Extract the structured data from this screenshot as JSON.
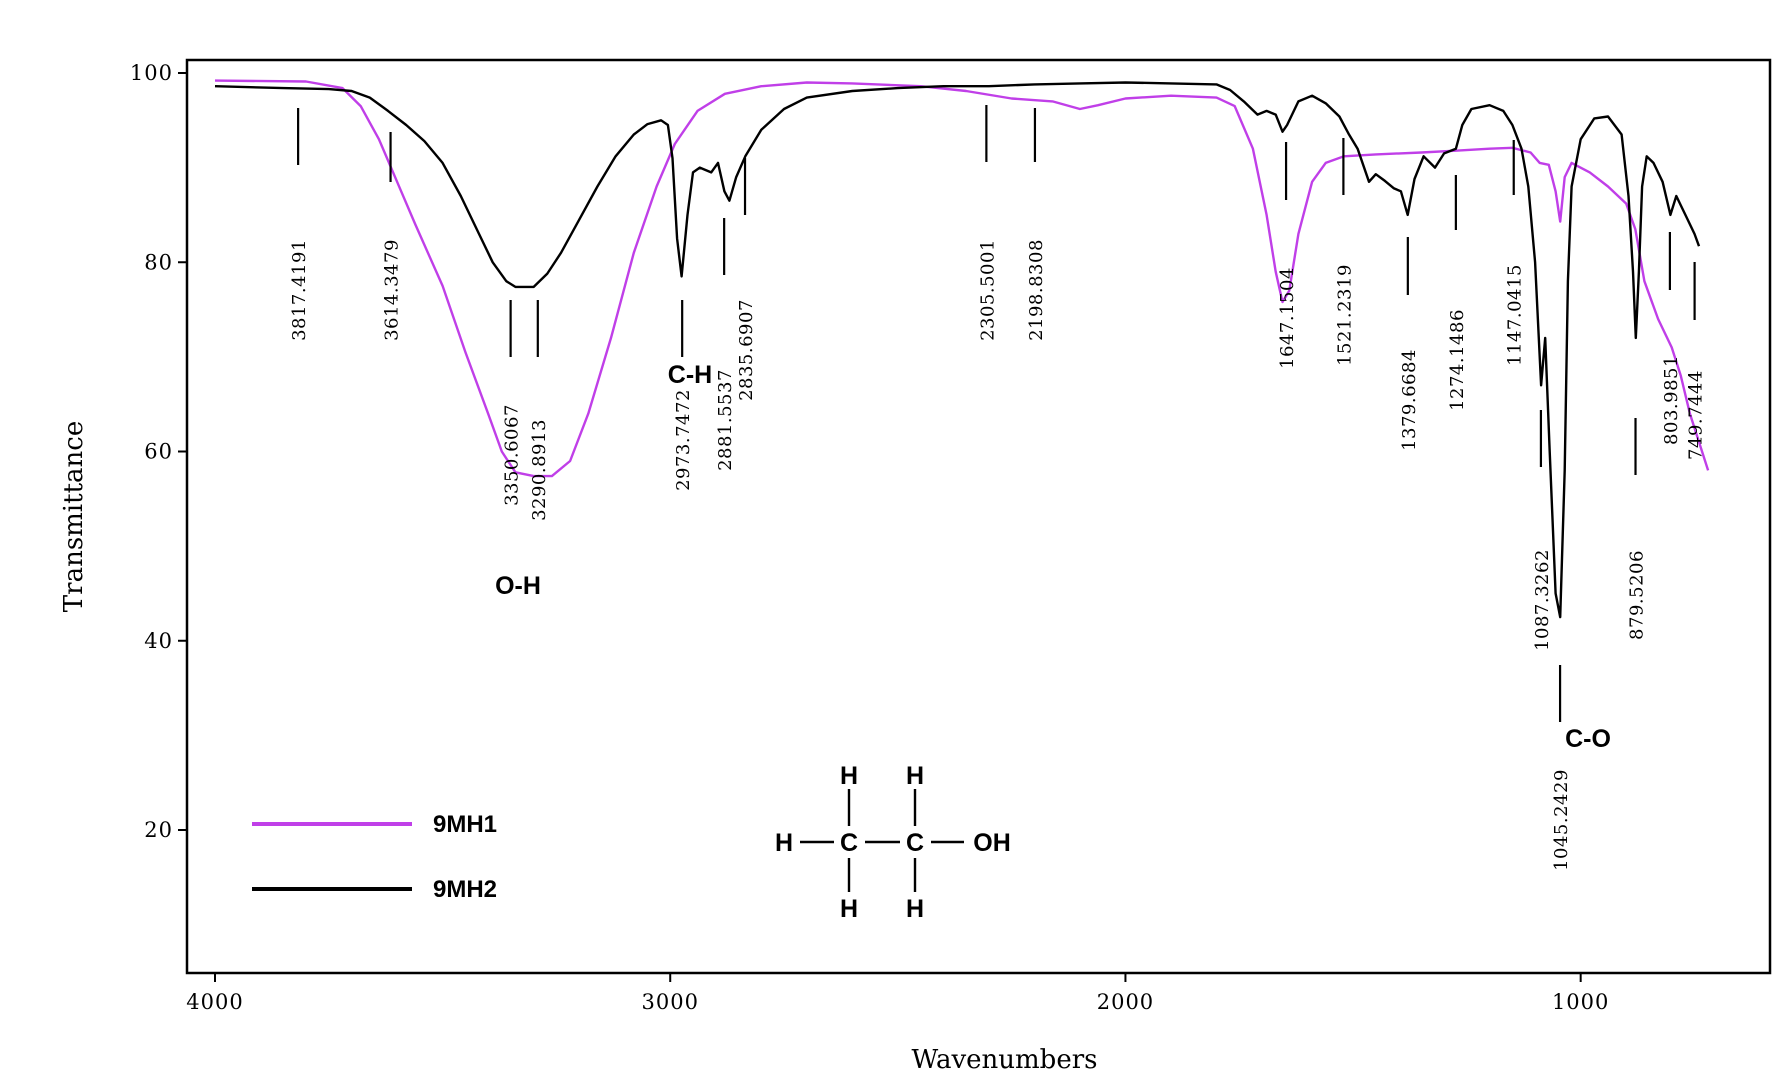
{
  "chart_data": {
    "type": "line",
    "title": "",
    "xlabel": "Wavenumbers",
    "ylabel": "Transmittance",
    "xlim": [
      4000,
      650
    ],
    "ylim": [
      5,
      102
    ],
    "xticks": [
      4000,
      3000,
      2000,
      1000
    ],
    "yticks": [
      20,
      40,
      60,
      80,
      100
    ],
    "x_reversed": true,
    "grid": false,
    "legend_position": "bottom-left",
    "series": [
      {
        "name": "9MH1",
        "color": "#c03fe8",
        "points": [
          [
            4000,
            99.2
          ],
          [
            3800,
            99.1
          ],
          [
            3720,
            98.4
          ],
          [
            3680,
            96.5
          ],
          [
            3640,
            93
          ],
          [
            3600,
            88.5
          ],
          [
            3560,
            84
          ],
          [
            3500,
            77.5
          ],
          [
            3450,
            70.5
          ],
          [
            3400,
            64
          ],
          [
            3370,
            60
          ],
          [
            3340,
            57.8
          ],
          [
            3300,
            57.4
          ],
          [
            3260,
            57.4
          ],
          [
            3220,
            59
          ],
          [
            3180,
            64
          ],
          [
            3130,
            72
          ],
          [
            3080,
            81
          ],
          [
            3030,
            88
          ],
          [
            2990,
            92.5
          ],
          [
            2940,
            96
          ],
          [
            2880,
            97.8
          ],
          [
            2800,
            98.6
          ],
          [
            2700,
            99
          ],
          [
            2600,
            98.9
          ],
          [
            2450,
            98.6
          ],
          [
            2350,
            98.1
          ],
          [
            2250,
            97.3
          ],
          [
            2160,
            97
          ],
          [
            2100,
            96.2
          ],
          [
            2060,
            96.6
          ],
          [
            2000,
            97.3
          ],
          [
            1900,
            97.6
          ],
          [
            1800,
            97.4
          ],
          [
            1760,
            96.5
          ],
          [
            1720,
            92
          ],
          [
            1690,
            85
          ],
          [
            1670,
            79
          ],
          [
            1655,
            75.8
          ],
          [
            1640,
            77
          ],
          [
            1620,
            83
          ],
          [
            1590,
            88.5
          ],
          [
            1560,
            90.5
          ],
          [
            1520,
            91.2
          ],
          [
            1450,
            91.4
          ],
          [
            1350,
            91.6
          ],
          [
            1270,
            91.8
          ],
          [
            1200,
            92
          ],
          [
            1150,
            92.1
          ],
          [
            1110,
            91.6
          ],
          [
            1090,
            90.5
          ],
          [
            1070,
            90.3
          ],
          [
            1055,
            87.5
          ],
          [
            1045,
            84.3
          ],
          [
            1035,
            89
          ],
          [
            1020,
            90.5
          ],
          [
            980,
            89.5
          ],
          [
            940,
            88
          ],
          [
            900,
            86.2
          ],
          [
            880,
            83.5
          ],
          [
            860,
            78
          ],
          [
            830,
            74
          ],
          [
            800,
            71
          ],
          [
            780,
            68
          ],
          [
            760,
            64
          ],
          [
            740,
            61
          ],
          [
            720,
            58
          ]
        ]
      },
      {
        "name": "9MH2",
        "color": "#000000",
        "points": [
          [
            4000,
            98.6
          ],
          [
            3850,
            98.4
          ],
          [
            3750,
            98.3
          ],
          [
            3700,
            98.1
          ],
          [
            3660,
            97.4
          ],
          [
            3620,
            96
          ],
          [
            3580,
            94.5
          ],
          [
            3540,
            92.8
          ],
          [
            3500,
            90.5
          ],
          [
            3460,
            87
          ],
          [
            3420,
            83
          ],
          [
            3390,
            80
          ],
          [
            3360,
            78
          ],
          [
            3340,
            77.4
          ],
          [
            3300,
            77.4
          ],
          [
            3270,
            78.8
          ],
          [
            3240,
            81
          ],
          [
            3200,
            84.5
          ],
          [
            3160,
            88
          ],
          [
            3120,
            91.2
          ],
          [
            3080,
            93.5
          ],
          [
            3050,
            94.6
          ],
          [
            3020,
            95
          ],
          [
            3005,
            94.5
          ],
          [
            2995,
            91
          ],
          [
            2985,
            82.5
          ],
          [
            2975,
            78.5
          ],
          [
            2962,
            85
          ],
          [
            2950,
            89.5
          ],
          [
            2935,
            90
          ],
          [
            2910,
            89.5
          ],
          [
            2895,
            90.5
          ],
          [
            2881,
            87.5
          ],
          [
            2870,
            86.5
          ],
          [
            2855,
            89
          ],
          [
            2835,
            91.2
          ],
          [
            2800,
            94
          ],
          [
            2750,
            96.2
          ],
          [
            2700,
            97.4
          ],
          [
            2600,
            98.1
          ],
          [
            2500,
            98.4
          ],
          [
            2400,
            98.6
          ],
          [
            2300,
            98.6
          ],
          [
            2200,
            98.8
          ],
          [
            2100,
            98.9
          ],
          [
            2000,
            99
          ],
          [
            1900,
            98.9
          ],
          [
            1800,
            98.8
          ],
          [
            1770,
            98.2
          ],
          [
            1740,
            97
          ],
          [
            1710,
            95.6
          ],
          [
            1690,
            96
          ],
          [
            1670,
            95.6
          ],
          [
            1655,
            93.8
          ],
          [
            1645,
            94.5
          ],
          [
            1620,
            97
          ],
          [
            1590,
            97.6
          ],
          [
            1560,
            96.8
          ],
          [
            1530,
            95.4
          ],
          [
            1510,
            93.6
          ],
          [
            1490,
            92
          ],
          [
            1465,
            88.5
          ],
          [
            1450,
            89.3
          ],
          [
            1430,
            88.6
          ],
          [
            1410,
            87.8
          ],
          [
            1395,
            87.5
          ],
          [
            1380,
            85
          ],
          [
            1365,
            88.8
          ],
          [
            1345,
            91.2
          ],
          [
            1320,
            90
          ],
          [
            1300,
            91.5
          ],
          [
            1274,
            92
          ],
          [
            1260,
            94.5
          ],
          [
            1240,
            96.2
          ],
          [
            1200,
            96.6
          ],
          [
            1170,
            96
          ],
          [
            1150,
            94.5
          ],
          [
            1130,
            92
          ],
          [
            1115,
            88
          ],
          [
            1100,
            80
          ],
          [
            1087,
            67
          ],
          [
            1078,
            72
          ],
          [
            1068,
            60
          ],
          [
            1055,
            45
          ],
          [
            1045,
            42.5
          ],
          [
            1035,
            58
          ],
          [
            1028,
            78
          ],
          [
            1020,
            88
          ],
          [
            1000,
            93
          ],
          [
            970,
            95.2
          ],
          [
            940,
            95.4
          ],
          [
            910,
            93.5
          ],
          [
            895,
            87
          ],
          [
            885,
            79
          ],
          [
            879,
            72
          ],
          [
            872,
            79
          ],
          [
            865,
            88
          ],
          [
            855,
            91.2
          ],
          [
            840,
            90.5
          ],
          [
            820,
            88.5
          ],
          [
            803,
            85
          ],
          [
            790,
            87
          ],
          [
            770,
            85
          ],
          [
            750,
            83
          ],
          [
            740,
            81.7
          ]
        ]
      }
    ],
    "peak_labels": [
      {
        "x": 3817.4191,
        "label": "3817.4191"
      },
      {
        "x": 3614.3479,
        "label": "3614.3479"
      },
      {
        "x": 3350.6067,
        "label": "3350.6067"
      },
      {
        "x": 3290.8913,
        "label": "3290.8913"
      },
      {
        "x": 2973.7472,
        "label": "2973.7472"
      },
      {
        "x": 2881.5537,
        "label": "2881.5537"
      },
      {
        "x": 2835.6907,
        "label": "2835.6907"
      },
      {
        "x": 2305.5001,
        "label": "2305.5001"
      },
      {
        "x": 2198.8308,
        "label": "2198.8308"
      },
      {
        "x": 1647.1504,
        "label": "1647.1504"
      },
      {
        "x": 1521.2319,
        "label": "1521.2319"
      },
      {
        "x": 1379.6684,
        "label": "1379.6684"
      },
      {
        "x": 1274.1486,
        "label": "1274.1486"
      },
      {
        "x": 1147.0415,
        "label": "1147.0415"
      },
      {
        "x": 1087.3262,
        "label": "1087.3262"
      },
      {
        "x": 1045.2429,
        "label": "1045.2429"
      },
      {
        "x": 879.5206,
        "label": "879.5206"
      },
      {
        "x": 803.9851,
        "label": "803.9851"
      },
      {
        "x": 749.7444,
        "label": "749.7444"
      }
    ],
    "group_labels": [
      {
        "text": "O-H",
        "x": 3350
      },
      {
        "text": "C-H",
        "x": 3000
      },
      {
        "text": "C-O",
        "x": 1045
      }
    ],
    "molecule": {
      "atoms_top": [
        "H",
        "H"
      ],
      "atoms_middle": [
        "H",
        "C",
        "C",
        "OH"
      ],
      "atoms_bottom": [
        "H",
        "H"
      ]
    }
  }
}
